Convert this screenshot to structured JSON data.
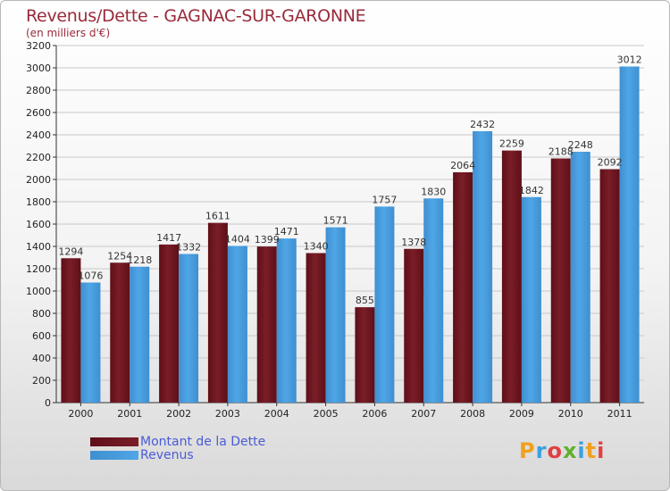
{
  "title": "Revenus/Dette - GAGNAC-SUR-GARONNE",
  "subtitle": "(en milliers d'€)",
  "logo": {
    "text": "Proxiti"
  },
  "colors": {
    "dette": "#7a1e28",
    "revenus": "#4fa6e6",
    "axis": "#333333",
    "grid": "#c8c8c8",
    "title": "#9a2a3a",
    "legend_text": "#4a5bd6"
  },
  "chart_data": {
    "type": "bar",
    "categories": [
      "2000",
      "2001",
      "2002",
      "2003",
      "2004",
      "2005",
      "2006",
      "2007",
      "2008",
      "2009",
      "2010",
      "2011"
    ],
    "series": [
      {
        "name": "Montant de la Dette",
        "values": [
          1294,
          1254,
          1417,
          1611,
          1399,
          1340,
          855,
          1378,
          2064,
          2259,
          2188,
          2092
        ]
      },
      {
        "name": "Revenus",
        "values": [
          1076,
          1218,
          1332,
          1404,
          1471,
          1571,
          1757,
          1830,
          2432,
          1842,
          2248,
          3012
        ]
      }
    ],
    "title": "Revenus/Dette - GAGNAC-SUR-GARONNE",
    "ylabel": "(en milliers d'€)",
    "ylim": [
      0,
      3200
    ],
    "yticks": [
      0,
      200,
      400,
      600,
      800,
      1000,
      1200,
      1400,
      1600,
      1800,
      2000,
      2200,
      2400,
      2600,
      2800,
      3000,
      3200
    ],
    "grid": true,
    "legend_position": "bottom-left"
  }
}
